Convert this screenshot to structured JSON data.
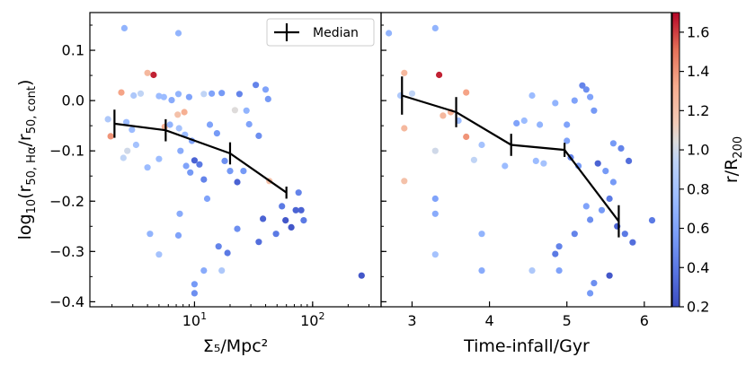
{
  "chart_data": [
    {
      "type": "scatter",
      "panel": "left",
      "xscale": "log",
      "xlim": [
        1.3,
        380
      ],
      "ylim": [
        -0.41,
        0.175
      ],
      "xlabel": "Σ₅/Mpc²",
      "ylabel_html": [
        "log",
        "10",
        "(r",
        "50, Hα",
        "/r",
        "50, cont",
        ")"
      ],
      "xticks": [
        10,
        100
      ],
      "xtick_labels": [
        "10¹",
        "10²"
      ],
      "yticks": [
        -0.4,
        -0.3,
        -0.2,
        -0.1,
        0.0,
        0.1
      ],
      "ytick_labels": [
        "−0.4",
        "−0.3",
        "−0.2",
        "−0.1",
        "0.0",
        "0.1"
      ],
      "points": [
        {
          "x": 2.55,
          "y": 0.144,
          "c": 0.7
        },
        {
          "x": 7.3,
          "y": 0.134,
          "c": 0.7
        },
        {
          "x": 4.5,
          "y": 0.051,
          "c": 1.65
        },
        {
          "x": 4.0,
          "y": 0.055,
          "c": 1.25
        },
        {
          "x": 2.4,
          "y": 0.016,
          "c": 1.35
        },
        {
          "x": 3.05,
          "y": 0.01,
          "c": 0.85
        },
        {
          "x": 3.5,
          "y": 0.014,
          "c": 0.95
        },
        {
          "x": 5.0,
          "y": 0.009,
          "c": 0.75
        },
        {
          "x": 5.5,
          "y": 0.007,
          "c": 0.75
        },
        {
          "x": 6.4,
          "y": 0.001,
          "c": 0.65
        },
        {
          "x": 7.3,
          "y": 0.013,
          "c": 0.7
        },
        {
          "x": 9.0,
          "y": 0.007,
          "c": 0.6
        },
        {
          "x": 12.0,
          "y": 0.013,
          "c": 0.95
        },
        {
          "x": 14.0,
          "y": 0.014,
          "c": 0.6
        },
        {
          "x": 17.0,
          "y": 0.015,
          "c": 0.55
        },
        {
          "x": 24.0,
          "y": 0.013,
          "c": 0.45
        },
        {
          "x": 33.0,
          "y": 0.031,
          "c": 0.45
        },
        {
          "x": 40.0,
          "y": 0.022,
          "c": 0.6
        },
        {
          "x": 42.0,
          "y": 0.003,
          "c": 0.55
        },
        {
          "x": 1.85,
          "y": -0.037,
          "c": 0.85
        },
        {
          "x": 1.95,
          "y": -0.071,
          "c": 1.4
        },
        {
          "x": 2.65,
          "y": -0.043,
          "c": 0.75
        },
        {
          "x": 2.95,
          "y": -0.058,
          "c": 0.75
        },
        {
          "x": 3.2,
          "y": -0.088,
          "c": 0.8
        },
        {
          "x": 2.7,
          "y": -0.1,
          "c": 1.0
        },
        {
          "x": 2.5,
          "y": -0.114,
          "c": 0.95
        },
        {
          "x": 4.0,
          "y": -0.133,
          "c": 0.75
        },
        {
          "x": 5.0,
          "y": -0.116,
          "c": 0.75
        },
        {
          "x": 5.6,
          "y": -0.052,
          "c": 1.3
        },
        {
          "x": 6.2,
          "y": -0.048,
          "c": 0.7
        },
        {
          "x": 7.2,
          "y": -0.028,
          "c": 1.2
        },
        {
          "x": 8.2,
          "y": -0.023,
          "c": 1.3
        },
        {
          "x": 7.4,
          "y": -0.055,
          "c": 0.8
        },
        {
          "x": 8.3,
          "y": -0.068,
          "c": 0.75
        },
        {
          "x": 9.5,
          "y": -0.08,
          "c": 0.6
        },
        {
          "x": 7.6,
          "y": -0.1,
          "c": 0.65
        },
        {
          "x": 8.5,
          "y": -0.13,
          "c": 0.6
        },
        {
          "x": 9.2,
          "y": -0.143,
          "c": 0.55
        },
        {
          "x": 10.0,
          "y": -0.119,
          "c": 0.3
        },
        {
          "x": 11.0,
          "y": -0.127,
          "c": 0.4
        },
        {
          "x": 12.0,
          "y": -0.157,
          "c": 0.45
        },
        {
          "x": 13.5,
          "y": -0.048,
          "c": 0.6
        },
        {
          "x": 15.5,
          "y": -0.065,
          "c": 0.55
        },
        {
          "x": 12.8,
          "y": -0.195,
          "c": 0.6
        },
        {
          "x": 18.0,
          "y": -0.12,
          "c": 0.5
        },
        {
          "x": 20.0,
          "y": -0.14,
          "c": 0.55
        },
        {
          "x": 23.0,
          "y": -0.162,
          "c": 0.3
        },
        {
          "x": 26.0,
          "y": -0.14,
          "c": 0.55
        },
        {
          "x": 22.0,
          "y": -0.019,
          "c": 1.05
        },
        {
          "x": 27.5,
          "y": -0.02,
          "c": 0.7
        },
        {
          "x": 29.0,
          "y": -0.047,
          "c": 0.6
        },
        {
          "x": 35.0,
          "y": -0.07,
          "c": 0.5
        },
        {
          "x": 43.0,
          "y": -0.16,
          "c": 1.2
        },
        {
          "x": 38.0,
          "y": -0.235,
          "c": 0.3
        },
        {
          "x": 55.0,
          "y": -0.21,
          "c": 0.4
        },
        {
          "x": 59.0,
          "y": -0.238,
          "c": 0.25
        },
        {
          "x": 66.0,
          "y": -0.252,
          "c": 0.25
        },
        {
          "x": 72.0,
          "y": -0.218,
          "c": 0.3
        },
        {
          "x": 80.0,
          "y": -0.218,
          "c": 0.3
        },
        {
          "x": 84.0,
          "y": -0.238,
          "c": 0.4
        },
        {
          "x": 76.0,
          "y": -0.183,
          "c": 0.45
        },
        {
          "x": 49.0,
          "y": -0.265,
          "c": 0.4
        },
        {
          "x": 35.0,
          "y": -0.281,
          "c": 0.35
        },
        {
          "x": 23.0,
          "y": -0.255,
          "c": 0.5
        },
        {
          "x": 16.0,
          "y": -0.29,
          "c": 0.45
        },
        {
          "x": 19.0,
          "y": -0.303,
          "c": 0.4
        },
        {
          "x": 17.0,
          "y": -0.338,
          "c": 0.85
        },
        {
          "x": 12.0,
          "y": -0.338,
          "c": 0.65
        },
        {
          "x": 10.0,
          "y": -0.365,
          "c": 0.55
        },
        {
          "x": 10.0,
          "y": -0.383,
          "c": 0.5
        },
        {
          "x": 7.5,
          "y": -0.225,
          "c": 0.65
        },
        {
          "x": 7.3,
          "y": -0.268,
          "c": 0.6
        },
        {
          "x": 5.0,
          "y": -0.306,
          "c": 0.8
        },
        {
          "x": 4.2,
          "y": -0.265,
          "c": 0.7
        },
        {
          "x": 260.0,
          "y": -0.348,
          "c": 0.25
        }
      ],
      "median": {
        "label": "Median",
        "x": [
          2.1,
          5.7,
          20.0,
          60.0
        ],
        "y": [
          -0.046,
          -0.059,
          -0.105,
          -0.183
        ],
        "yerr": [
          0.028,
          0.022,
          0.022,
          0.012
        ]
      }
    },
    {
      "type": "scatter",
      "panel": "right",
      "xscale": "linear",
      "xlim": [
        2.6,
        6.35
      ],
      "ylim": [
        -0.41,
        0.175
      ],
      "xlabel": "Time-infall/Gyr",
      "xticks": [
        3,
        4,
        5,
        6
      ],
      "xtick_labels": [
        "3",
        "4",
        "5",
        "6"
      ],
      "points": [
        {
          "x": 2.7,
          "y": 0.134,
          "c": 0.7
        },
        {
          "x": 3.3,
          "y": 0.144,
          "c": 0.7
        },
        {
          "x": 3.35,
          "y": 0.051,
          "c": 1.65
        },
        {
          "x": 2.9,
          "y": 0.055,
          "c": 1.25
        },
        {
          "x": 3.7,
          "y": 0.016,
          "c": 1.35
        },
        {
          "x": 2.85,
          "y": 0.01,
          "c": 0.85
        },
        {
          "x": 3.0,
          "y": 0.014,
          "c": 0.95
        },
        {
          "x": 3.4,
          "y": -0.03,
          "c": 1.25
        },
        {
          "x": 3.5,
          "y": -0.023,
          "c": 1.3
        },
        {
          "x": 3.6,
          "y": -0.04,
          "c": 0.75
        },
        {
          "x": 2.9,
          "y": -0.055,
          "c": 1.25
        },
        {
          "x": 3.7,
          "y": -0.072,
          "c": 1.4
        },
        {
          "x": 3.3,
          "y": -0.1,
          "c": 1.0
        },
        {
          "x": 3.9,
          "y": -0.088,
          "c": 0.8
        },
        {
          "x": 3.8,
          "y": -0.118,
          "c": 0.95
        },
        {
          "x": 4.2,
          "y": -0.13,
          "c": 0.75
        },
        {
          "x": 4.35,
          "y": -0.045,
          "c": 0.6
        },
        {
          "x": 4.45,
          "y": -0.04,
          "c": 0.75
        },
        {
          "x": 4.55,
          "y": 0.01,
          "c": 0.75
        },
        {
          "x": 4.65,
          "y": -0.048,
          "c": 0.7
        },
        {
          "x": 4.85,
          "y": -0.005,
          "c": 0.7
        },
        {
          "x": 4.7,
          "y": -0.125,
          "c": 0.8
        },
        {
          "x": 4.6,
          "y": -0.12,
          "c": 0.75
        },
        {
          "x": 5.0,
          "y": -0.048,
          "c": 0.6
        },
        {
          "x": 5.0,
          "y": -0.08,
          "c": 0.6
        },
        {
          "x": 5.1,
          "y": 0.0,
          "c": 0.6
        },
        {
          "x": 5.2,
          "y": 0.03,
          "c": 0.45
        },
        {
          "x": 5.25,
          "y": 0.022,
          "c": 0.5
        },
        {
          "x": 5.3,
          "y": 0.007,
          "c": 0.6
        },
        {
          "x": 5.35,
          "y": -0.02,
          "c": 0.55
        },
        {
          "x": 5.05,
          "y": -0.113,
          "c": 0.45
        },
        {
          "x": 5.15,
          "y": -0.13,
          "c": 0.55
        },
        {
          "x": 5.4,
          "y": -0.125,
          "c": 0.3
        },
        {
          "x": 5.5,
          "y": -0.14,
          "c": 0.55
        },
        {
          "x": 5.6,
          "y": -0.085,
          "c": 0.55
        },
        {
          "x": 5.7,
          "y": -0.095,
          "c": 0.45
        },
        {
          "x": 5.8,
          "y": -0.12,
          "c": 0.35
        },
        {
          "x": 5.6,
          "y": -0.162,
          "c": 0.55
        },
        {
          "x": 5.55,
          "y": -0.195,
          "c": 0.4
        },
        {
          "x": 5.25,
          "y": -0.21,
          "c": 0.6
        },
        {
          "x": 5.3,
          "y": -0.237,
          "c": 0.5
        },
        {
          "x": 5.45,
          "y": -0.218,
          "c": 0.55
        },
        {
          "x": 5.65,
          "y": -0.25,
          "c": 0.3
        },
        {
          "x": 5.75,
          "y": -0.265,
          "c": 0.4
        },
        {
          "x": 5.85,
          "y": -0.282,
          "c": 0.35
        },
        {
          "x": 6.1,
          "y": -0.238,
          "c": 0.4
        },
        {
          "x": 5.1,
          "y": -0.265,
          "c": 0.45
        },
        {
          "x": 4.9,
          "y": -0.29,
          "c": 0.45
        },
        {
          "x": 4.85,
          "y": -0.305,
          "c": 0.4
        },
        {
          "x": 5.55,
          "y": -0.348,
          "c": 0.25
        },
        {
          "x": 5.35,
          "y": -0.363,
          "c": 0.5
        },
        {
          "x": 5.3,
          "y": -0.383,
          "c": 0.55
        },
        {
          "x": 4.55,
          "y": -0.338,
          "c": 0.85
        },
        {
          "x": 3.9,
          "y": -0.338,
          "c": 0.65
        },
        {
          "x": 3.3,
          "y": -0.195,
          "c": 0.6
        },
        {
          "x": 3.3,
          "y": -0.225,
          "c": 0.65
        },
        {
          "x": 2.9,
          "y": -0.16,
          "c": 1.2
        },
        {
          "x": 3.3,
          "y": -0.306,
          "c": 0.8
        },
        {
          "x": 3.9,
          "y": -0.265,
          "c": 0.7
        },
        {
          "x": 4.9,
          "y": -0.338,
          "c": 0.6
        }
      ],
      "median": {
        "x": [
          2.87,
          3.57,
          4.28,
          4.97,
          5.67
        ],
        "y": [
          0.01,
          -0.023,
          -0.088,
          -0.098,
          -0.24
        ],
        "yerr": [
          0.038,
          0.03,
          0.022,
          0.014,
          0.032
        ]
      }
    }
  ],
  "legend": {
    "label": "Median",
    "placement": "upper-right"
  },
  "colorbar": {
    "label": "r/R",
    "label_sub": "200",
    "range": [
      0.2,
      1.7
    ],
    "ticks": [
      0.2,
      0.4,
      0.6,
      0.8,
      1.0,
      1.2,
      1.4,
      1.6
    ],
    "tick_labels": [
      "0.2",
      "0.4",
      "0.6",
      "0.8",
      "1.0",
      "1.2",
      "1.4",
      "1.6"
    ],
    "colormap": "coolwarm",
    "stops": [
      [
        0.0,
        "#3b4cc0"
      ],
      [
        0.125,
        "#5977e3"
      ],
      [
        0.25,
        "#7b9ff9"
      ],
      [
        0.375,
        "#9ebeff"
      ],
      [
        0.5,
        "#c0d4f5"
      ],
      [
        0.5625,
        "#dddcdc"
      ],
      [
        0.625,
        "#f2cbb7"
      ],
      [
        0.75,
        "#f7ac8e"
      ],
      [
        0.875,
        "#e57058"
      ],
      [
        1.0,
        "#b40426"
      ]
    ]
  }
}
